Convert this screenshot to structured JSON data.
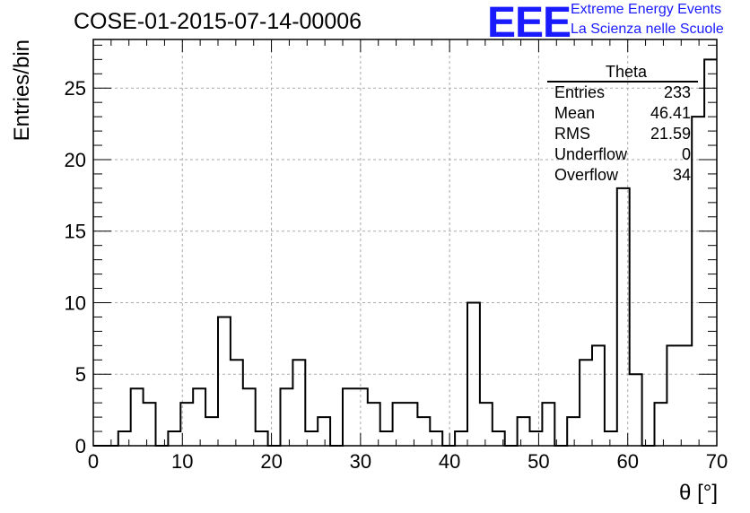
{
  "title": "COSE-01-2015-07-14-00006",
  "logo": {
    "mark": "EEE",
    "line1": "Extreme Energy Events",
    "line2": "La Scienza nelle Scuole",
    "color": "#1a1aff"
  },
  "stats_box": {
    "name": "Theta",
    "rows": [
      {
        "label": "Entries",
        "value": "233"
      },
      {
        "label": "Mean",
        "value": "46.41"
      },
      {
        "label": "RMS",
        "value": "21.59"
      },
      {
        "label": "Underflow",
        "value": "0"
      },
      {
        "label": "Overflow",
        "value": "34"
      }
    ]
  },
  "chart_data": {
    "type": "bar",
    "histogram": true,
    "bin_width": 1.4,
    "bin_edges_start": 0,
    "values": [
      0,
      0,
      1,
      4,
      3,
      0,
      1,
      3,
      4,
      2,
      9,
      6,
      4,
      1,
      0,
      4,
      6,
      1,
      2,
      0,
      4,
      4,
      3,
      1,
      3,
      3,
      2,
      1,
      0,
      1,
      10,
      3,
      1,
      0,
      2,
      1,
      3,
      0,
      2,
      6,
      7,
      1,
      18,
      5,
      0,
      3,
      7,
      7,
      23,
      27
    ],
    "xlabel": "θ [°]",
    "ylabel": "Entries/bin",
    "xlim": [
      0,
      70
    ],
    "ylim": [
      0,
      28.4
    ],
    "xticks": [
      0,
      10,
      20,
      30,
      40,
      50,
      60,
      70
    ],
    "yticks": [
      0,
      5,
      10,
      15,
      20,
      25
    ],
    "grid": true,
    "line_color": "#000000",
    "grid_color": "#aaaaaa"
  }
}
